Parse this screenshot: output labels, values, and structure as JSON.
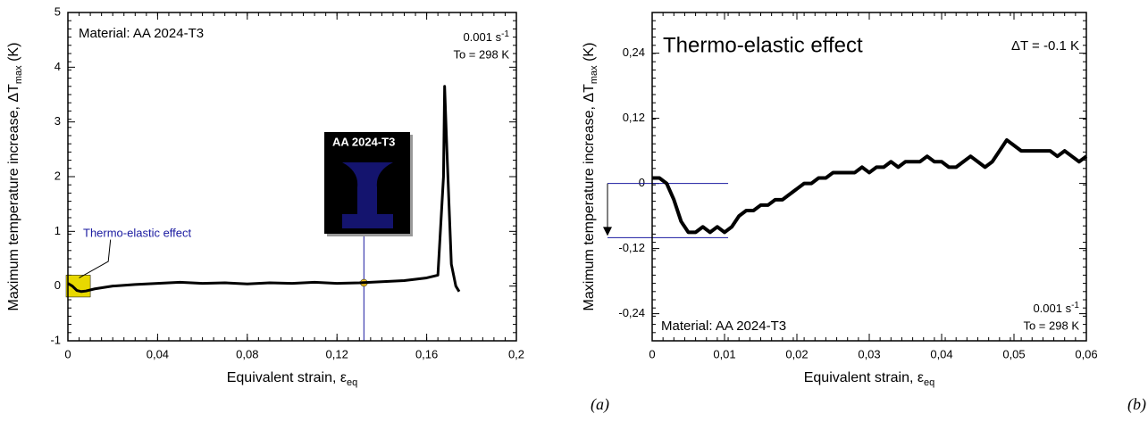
{
  "chart_data": [
    {
      "type": "line",
      "xlabel": {
        "main": "Equivalent strain, ε",
        "sub": "eq"
      },
      "ylabel": {
        "main": "Maximum temperature increase, ΔT",
        "sub": "max",
        "unit": " (K)"
      },
      "xlim": [
        0,
        0.2
      ],
      "ylim": [
        -1,
        5
      ],
      "xticks": [
        0,
        {
          "value": 0.04,
          "label": "0,04"
        },
        {
          "value": 0.08,
          "label": "0,08"
        },
        {
          "value": 0.12,
          "label": "0,12"
        },
        {
          "value": 0.16,
          "label": "0,16"
        },
        {
          "value": 0.2,
          "label": "0,2"
        }
      ],
      "yticks": [
        -1,
        0,
        1,
        2,
        3,
        4,
        5
      ],
      "x": [
        0,
        0.002,
        0.004,
        0.006,
        0.008,
        0.012,
        0.02,
        0.03,
        0.04,
        0.05,
        0.06,
        0.07,
        0.08,
        0.09,
        0.1,
        0.11,
        0.12,
        0.13,
        0.14,
        0.15,
        0.16,
        0.165,
        0.1675,
        0.168,
        0.169,
        0.171,
        0.173,
        0.1745
      ],
      "values": [
        0.05,
        0.0,
        -0.08,
        -0.1,
        -0.09,
        -0.05,
        0.0,
        0.03,
        0.05,
        0.07,
        0.05,
        0.06,
        0.04,
        0.06,
        0.05,
        0.07,
        0.05,
        0.06,
        0.08,
        0.1,
        0.15,
        0.2,
        2.0,
        3.65,
        2.5,
        0.4,
        0.0,
        -0.1
      ],
      "color": "#000000",
      "material": "Material: AA 2024-T3",
      "rate": "0.001 s",
      "rate_exp": "-1",
      "temperature": "To = 298 K",
      "annotation": "Thermo-elastic effect",
      "inset_label": "AA 2024-T3",
      "marker": {
        "x": 0.132,
        "y": 0.06
      },
      "panel": "(a)"
    },
    {
      "type": "line",
      "title": "Thermo-elastic effect",
      "delta": "ΔT = -0.1 K",
      "xlabel": {
        "main": "Equivalent strain, ε",
        "sub": "eq"
      },
      "ylabel": {
        "main": "Maximum temperature increase, ΔT",
        "sub": "max",
        "unit": " (K)"
      },
      "xlim": [
        0,
        0.06
      ],
      "ylim": [
        -0.29,
        0.315
      ],
      "xticks": [
        0,
        {
          "value": 0.01,
          "label": "0,01"
        },
        {
          "value": 0.02,
          "label": "0,02"
        },
        {
          "value": 0.03,
          "label": "0,03"
        },
        {
          "value": 0.04,
          "label": "0,04"
        },
        {
          "value": 0.05,
          "label": "0,05"
        },
        {
          "value": 0.06,
          "label": "0,06"
        }
      ],
      "yticks": [
        {
          "value": -0.24,
          "label": "-0,24"
        },
        {
          "value": -0.12,
          "label": "-0,12"
        },
        0,
        {
          "value": 0.12,
          "label": "0,12"
        },
        {
          "value": 0.24,
          "label": "0,24"
        }
      ],
      "x": [
        0,
        0.001,
        0.002,
        0.003,
        0.004,
        0.005,
        0.006,
        0.007,
        0.008,
        0.009,
        0.01,
        0.011,
        0.012,
        0.013,
        0.014,
        0.015,
        0.016,
        0.017,
        0.018,
        0.019,
        0.02,
        0.021,
        0.022,
        0.023,
        0.024,
        0.025,
        0.026,
        0.027,
        0.028,
        0.029,
        0.03,
        0.031,
        0.032,
        0.033,
        0.034,
        0.035,
        0.036,
        0.037,
        0.038,
        0.039,
        0.04,
        0.041,
        0.042,
        0.043,
        0.044,
        0.045,
        0.046,
        0.047,
        0.048,
        0.049,
        0.05,
        0.051,
        0.052,
        0.053,
        0.054,
        0.055,
        0.056,
        0.057,
        0.058,
        0.059,
        0.06
      ],
      "values": [
        0.01,
        0.01,
        0.0,
        -0.03,
        -0.07,
        -0.09,
        -0.09,
        -0.08,
        -0.09,
        -0.08,
        -0.09,
        -0.08,
        -0.06,
        -0.05,
        -0.05,
        -0.04,
        -0.04,
        -0.03,
        -0.03,
        -0.02,
        -0.01,
        0.0,
        0.0,
        0.01,
        0.01,
        0.02,
        0.02,
        0.02,
        0.02,
        0.03,
        0.02,
        0.03,
        0.03,
        0.04,
        0.03,
        0.04,
        0.04,
        0.04,
        0.05,
        0.04,
        0.04,
        0.03,
        0.03,
        0.04,
        0.05,
        0.04,
        0.03,
        0.04,
        0.06,
        0.08,
        0.07,
        0.06,
        0.06,
        0.06,
        0.06,
        0.06,
        0.05,
        0.06,
        0.05,
        0.04,
        0.05
      ],
      "color": "#000000",
      "hlines": [
        0,
        -0.1
      ],
      "material": "Material: AA 2024-T3",
      "rate": "0.001 s",
      "rate_exp": "-1",
      "temperature": "To = 298 K",
      "panel": "(b)"
    }
  ]
}
